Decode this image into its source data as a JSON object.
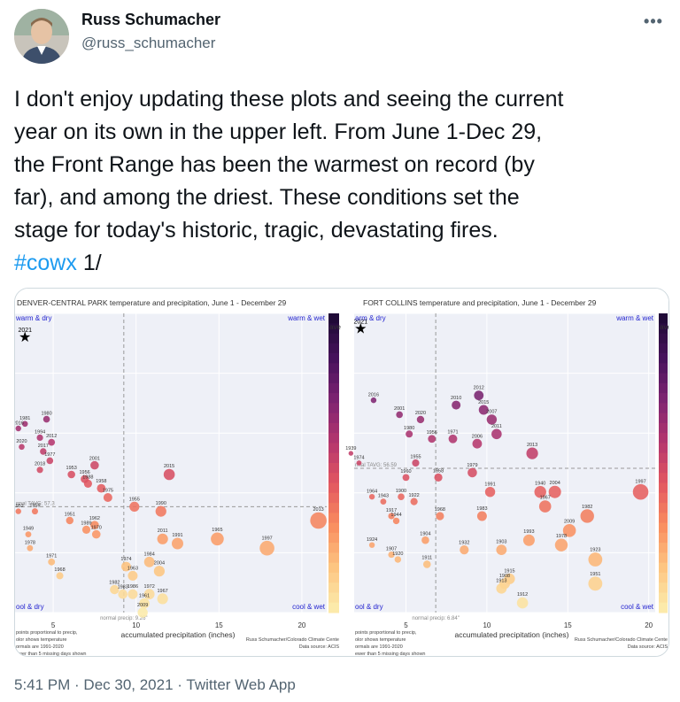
{
  "author": {
    "name": "Russ Schumacher",
    "handle": "@russ_schumacher"
  },
  "tweet": {
    "line1": "I don't enjoy updating these plots and seeing the current",
    "line2": "year on its own in the upper left. From June 1-Dec 29,",
    "line3": "the Front Range has been the warmest on record (by",
    "line4": "far), and among the driest. These conditions set the",
    "line5": "stage for today's historic, tragic, devastating fires.",
    "hashtag": "#cowx",
    "suffix": " 1/"
  },
  "meta": {
    "time": "5:41 PM",
    "sep1": " · ",
    "date": "Dec 30, 2021",
    "sep2": " · ",
    "client": "Twitter Web App"
  },
  "colors": {
    "hashtag": "#1d9bf0",
    "quadrant_label": "#1f1fcf",
    "marker_hot": "#3b0f4f",
    "marker_cool": "#fde9a9"
  },
  "icons": {
    "more": "more-horizontal-icon",
    "star": "star-icon"
  },
  "chart_data": [
    {
      "type": "scatter",
      "title": "DENVER-CENTRAL PARK temperature and precipitation, June 1 - December 29",
      "xlabel": "accumulated precipitation (inches)",
      "xticks": [
        "5",
        "10",
        "15",
        "20"
      ],
      "xlim": [
        2.7,
        21.5
      ],
      "ylim": [
        55.0,
        61.5
      ],
      "normal_precip_label": "normal precip: 9.26\"",
      "normal_precip": 9.26,
      "normal_temp_label": "rmal TAVG: 57.3",
      "normal_temp": 57.3,
      "quadrants": {
        "top_left": "warm & dry",
        "top_right": "warm & wet",
        "bottom_left": "ool & dry",
        "bottom_right": "cool & wet"
      },
      "colorbar_label": "ave",
      "footnote_left": [
        "points proportional to precip,",
        "olor shows temperature",
        "ormals are 1991-2020",
        "ewer than 5 missing days shown"
      ],
      "footnote_right": [
        "Russ Schumacher/Colorado Climate Cente",
        "Data source: ACIS"
      ],
      "highlight": {
        "label": "2021",
        "x": 3.3,
        "y": 61.0
      },
      "points": [
        {
          "label": "1981",
          "x": 3.3,
          "y": 59.1
        },
        {
          "label": "1980",
          "x": 4.6,
          "y": 59.2
        },
        {
          "label": "2016",
          "x": 2.9,
          "y": 59.0
        },
        {
          "label": "1994",
          "x": 4.2,
          "y": 58.8
        },
        {
          "label": "2020",
          "x": 3.1,
          "y": 58.6
        },
        {
          "label": "2012",
          "x": 4.9,
          "y": 58.7
        },
        {
          "label": "2017",
          "x": 4.4,
          "y": 58.5
        },
        {
          "label": "1977",
          "x": 4.8,
          "y": 58.3
        },
        {
          "label": "2001",
          "x": 7.5,
          "y": 58.2
        },
        {
          "label": "2018",
          "x": 4.2,
          "y": 58.1
        },
        {
          "label": "1953",
          "x": 6.1,
          "y": 58.0
        },
        {
          "label": "1956",
          "x": 6.9,
          "y": 57.9
        },
        {
          "label": "1988",
          "x": 7.1,
          "y": 57.8
        },
        {
          "label": "1958",
          "x": 7.9,
          "y": 57.7
        },
        {
          "label": "2015",
          "x": 12.0,
          "y": 58.0
        },
        {
          "label": "1975",
          "x": 8.3,
          "y": 57.5
        },
        {
          "label": "1955",
          "x": 9.9,
          "y": 57.3
        },
        {
          "label": "1990",
          "x": 11.5,
          "y": 57.2
        },
        {
          "label": "2013",
          "x": 21.0,
          "y": 57.0
        },
        {
          "label": "1952",
          "x": 2.9,
          "y": 57.2
        },
        {
          "label": "1959",
          "x": 3.9,
          "y": 57.2
        },
        {
          "label": "1951",
          "x": 6.0,
          "y": 57.0
        },
        {
          "label": "1962",
          "x": 7.5,
          "y": 56.9
        },
        {
          "label": "1989",
          "x": 7.0,
          "y": 56.8
        },
        {
          "label": "1949",
          "x": 3.5,
          "y": 56.7
        },
        {
          "label": "1970",
          "x": 7.6,
          "y": 56.7
        },
        {
          "label": "2011",
          "x": 11.6,
          "y": 56.6
        },
        {
          "label": "1991",
          "x": 12.5,
          "y": 56.5
        },
        {
          "label": "1965",
          "x": 14.9,
          "y": 56.6
        },
        {
          "label": "1997",
          "x": 17.9,
          "y": 56.4
        },
        {
          "label": "1978",
          "x": 3.6,
          "y": 56.4
        },
        {
          "label": "1971",
          "x": 4.9,
          "y": 56.1
        },
        {
          "label": "1984",
          "x": 10.8,
          "y": 56.1
        },
        {
          "label": "1974",
          "x": 9.4,
          "y": 56.0
        },
        {
          "label": "2004",
          "x": 11.4,
          "y": 55.9
        },
        {
          "label": "1968",
          "x": 5.4,
          "y": 55.8
        },
        {
          "label": "1963",
          "x": 9.8,
          "y": 55.8
        },
        {
          "label": "1982",
          "x": 8.7,
          "y": 55.5
        },
        {
          "label": "1983",
          "x": 9.2,
          "y": 55.4
        },
        {
          "label": "1986",
          "x": 9.8,
          "y": 55.4
        },
        {
          "label": "1972",
          "x": 10.8,
          "y": 55.4
        },
        {
          "label": "1961",
          "x": 10.5,
          "y": 55.2
        },
        {
          "label": "1967",
          "x": 11.6,
          "y": 55.3
        },
        {
          "label": "2009",
          "x": 10.4,
          "y": 55.0
        }
      ]
    },
    {
      "type": "scatter",
      "title": "FORT COLLINS temperature and precipitation, June 1 - December 29",
      "xlabel": "accumulated precipitation (inches)",
      "xticks": [
        "5",
        "10",
        "15",
        "20"
      ],
      "xlim": [
        1.8,
        20.4
      ],
      "ylim": [
        53.6,
        59.8
      ],
      "normal_precip_label": "normal precip: 6.84\"",
      "normal_precip": 6.84,
      "normal_temp_label": "rmal TAVG: 56.59",
      "normal_temp": 56.59,
      "quadrants": {
        "top_left": "arm & dry",
        "top_right": "warm & wet",
        "bottom_left": "ool & dry",
        "bottom_right": "cool & wet"
      },
      "colorbar_label": "ave",
      "footnote_left": [
        "points proportional to precip,",
        "olor shows temperature",
        "ormals are 1991-2020",
        "ewer than 5 missing days shown"
      ],
      "footnote_right": [
        "Russ Schumacher/Colorado Climate Cente",
        "Data source: ACIS"
      ],
      "highlight": {
        "label": "2021",
        "x": 2.2,
        "y": 59.5
      },
      "points": [
        {
          "label": "2016",
          "x": 3.0,
          "y": 58.0
        },
        {
          "label": "2012",
          "x": 9.5,
          "y": 58.1
        },
        {
          "label": "2010",
          "x": 8.1,
          "y": 57.9
        },
        {
          "label": "2015",
          "x": 9.8,
          "y": 57.8
        },
        {
          "label": "2001",
          "x": 4.6,
          "y": 57.7
        },
        {
          "label": "2020",
          "x": 5.9,
          "y": 57.6
        },
        {
          "label": "2007",
          "x": 10.3,
          "y": 57.6
        },
        {
          "label": "1980",
          "x": 5.2,
          "y": 57.3
        },
        {
          "label": "2011",
          "x": 10.6,
          "y": 57.3
        },
        {
          "label": "1956",
          "x": 6.6,
          "y": 57.2
        },
        {
          "label": "1971",
          "x": 7.9,
          "y": 57.2
        },
        {
          "label": "2006",
          "x": 9.4,
          "y": 57.1
        },
        {
          "label": "2013",
          "x": 12.8,
          "y": 56.9
        },
        {
          "label": "1939",
          "x": 1.6,
          "y": 56.9
        },
        {
          "label": "1974",
          "x": 2.1,
          "y": 56.7
        },
        {
          "label": "1955",
          "x": 5.6,
          "y": 56.7
        },
        {
          "label": "1960",
          "x": 5.0,
          "y": 56.4
        },
        {
          "label": "1958",
          "x": 7.0,
          "y": 56.4
        },
        {
          "label": "1979",
          "x": 9.1,
          "y": 56.5
        },
        {
          "label": "1997",
          "x": 19.5,
          "y": 56.1
        },
        {
          "label": "1964",
          "x": 2.9,
          "y": 56.0
        },
        {
          "label": "1943",
          "x": 3.6,
          "y": 55.9
        },
        {
          "label": "1900",
          "x": 4.7,
          "y": 56.0
        },
        {
          "label": "1922",
          "x": 5.5,
          "y": 55.9
        },
        {
          "label": "1991",
          "x": 10.2,
          "y": 56.1
        },
        {
          "label": "1940",
          "x": 13.3,
          "y": 56.1
        },
        {
          "label": "2004",
          "x": 14.2,
          "y": 56.1
        },
        {
          "label": "1967",
          "x": 13.6,
          "y": 55.8
        },
        {
          "label": "1917",
          "x": 4.1,
          "y": 55.6
        },
        {
          "label": "1944",
          "x": 4.4,
          "y": 55.5
        },
        {
          "label": "1968",
          "x": 7.1,
          "y": 55.6
        },
        {
          "label": "1983",
          "x": 9.7,
          "y": 55.6
        },
        {
          "label": "1982",
          "x": 16.2,
          "y": 55.6
        },
        {
          "label": "2009",
          "x": 15.1,
          "y": 55.3
        },
        {
          "label": "1904",
          "x": 6.2,
          "y": 55.1
        },
        {
          "label": "1924",
          "x": 2.9,
          "y": 55.0
        },
        {
          "label": "1932",
          "x": 8.6,
          "y": 54.9
        },
        {
          "label": "1993",
          "x": 12.6,
          "y": 55.1
        },
        {
          "label": "1903",
          "x": 10.9,
          "y": 54.9
        },
        {
          "label": "1978",
          "x": 14.6,
          "y": 55.0
        },
        {
          "label": "1907",
          "x": 4.1,
          "y": 54.8
        },
        {
          "label": "1920",
          "x": 4.5,
          "y": 54.7
        },
        {
          "label": "1911",
          "x": 6.3,
          "y": 54.6
        },
        {
          "label": "1923",
          "x": 16.7,
          "y": 54.7
        },
        {
          "label": "1915",
          "x": 11.4,
          "y": 54.3
        },
        {
          "label": "1908",
          "x": 11.1,
          "y": 54.2
        },
        {
          "label": "1913",
          "x": 10.9,
          "y": 54.1
        },
        {
          "label": "1951",
          "x": 16.7,
          "y": 54.2
        },
        {
          "label": "1912",
          "x": 12.2,
          "y": 53.8
        }
      ]
    }
  ]
}
